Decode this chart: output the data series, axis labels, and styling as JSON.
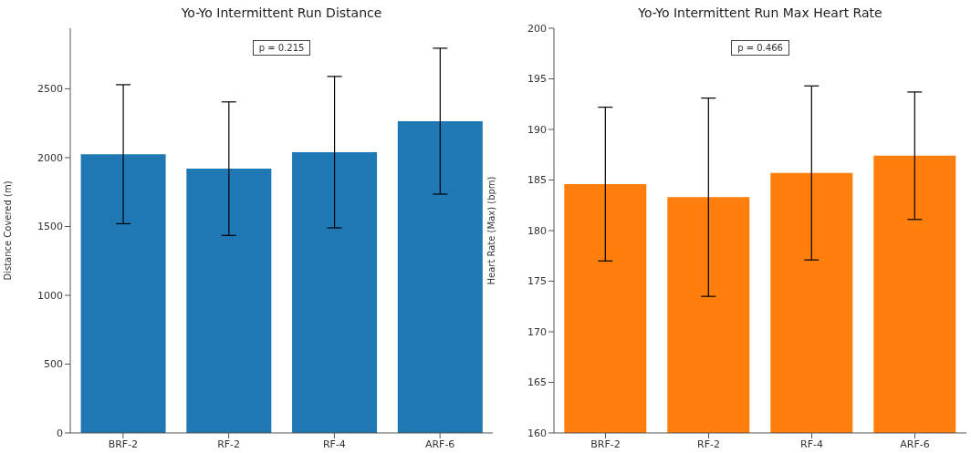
{
  "chart_data": [
    {
      "type": "bar",
      "title": "Yo-Yo Intermittent Run Distance",
      "ylabel": "Distance Covered (m)",
      "categories": [
        "BRF-2",
        "RF-2",
        "RF-4",
        "ARF-6"
      ],
      "values": [
        2025,
        1920,
        2040,
        2265
      ],
      "errors": [
        505,
        485,
        550,
        530
      ],
      "color": "#1f77b4",
      "ylim": [
        0,
        2940
      ],
      "yticks": [
        0,
        500,
        1000,
        1500,
        2000,
        2500
      ],
      "annotations": [
        "p = 0.215"
      ]
    },
    {
      "type": "bar",
      "title": "Yo-Yo Intermittent Run Max Heart Rate",
      "ylabel": "Heart Rate (Max) (bpm)",
      "categories": [
        "BRF-2",
        "RF-2",
        "RF-4",
        "ARF-6"
      ],
      "values": [
        184.6,
        183.3,
        185.7,
        187.4
      ],
      "errors": [
        7.6,
        9.8,
        8.6,
        6.3
      ],
      "color": "#ff7f0e",
      "ylim": [
        160,
        200
      ],
      "yticks": [
        160,
        165,
        170,
        175,
        180,
        185,
        190,
        195,
        200
      ],
      "annotations": [
        "p = 0.466"
      ]
    }
  ]
}
